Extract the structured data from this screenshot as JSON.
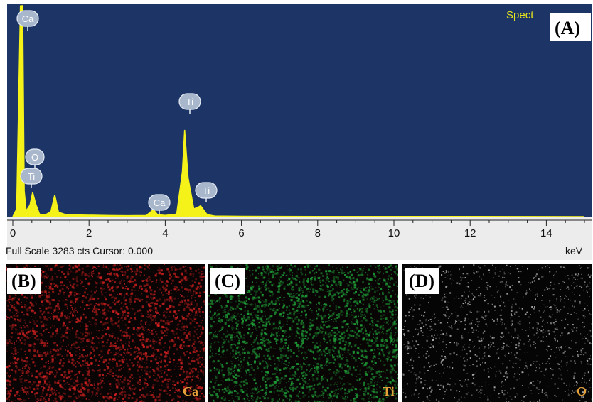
{
  "panels": {
    "a_label": "(A)",
    "b_label": "(B)",
    "c_label": "(C)",
    "d_label": "(D)"
  },
  "spectrum": {
    "header": "Spect",
    "footer_text": "Full Scale 3283 cts Cursor: 0.000",
    "x_unit": "keV",
    "peak_labels": [
      "Ca",
      "O",
      "Ti",
      "Ti",
      "Ca",
      "Ti"
    ]
  },
  "maps": [
    {
      "element": "Ca",
      "color": "#d42020"
    },
    {
      "element": "Ti",
      "color": "#1fa83a"
    },
    {
      "element": "O",
      "color": "#cfcfcf"
    }
  ],
  "colors": {
    "plot_bg": "#1c3566",
    "signal": "#f5f21a",
    "peak_tag": "#a9b7cc",
    "header_text": "#e8e51a",
    "map_label": "#e8a23a"
  },
  "chart_data": {
    "type": "area",
    "title": "",
    "xlabel": "keV",
    "ylabel": "",
    "xlim": [
      0,
      15
    ],
    "ylim": [
      0,
      3283
    ],
    "x_ticks": [
      0,
      2,
      4,
      6,
      8,
      10,
      12,
      14
    ],
    "grid": false,
    "x": [
      0.0,
      0.1,
      0.2,
      0.26,
      0.3,
      0.35,
      0.45,
      0.52,
      0.6,
      0.7,
      0.85,
      1.0,
      1.1,
      1.2,
      1.4,
      1.8,
      2.5,
      3.0,
      3.5,
      3.69,
      3.8,
      4.0,
      4.3,
      4.45,
      4.51,
      4.6,
      4.75,
      4.87,
      4.93,
      5.0,
      5.1,
      5.3,
      6.0,
      8.0,
      10.0,
      12.0,
      14.0,
      15.0
    ],
    "series": [
      {
        "values": [
          0,
          120,
          3280,
          3283,
          400,
          90,
          180,
          380,
          200,
          40,
          25,
          80,
          340,
          70,
          30,
          25,
          18,
          15,
          18,
          110,
          30,
          20,
          40,
          700,
          1350,
          600,
          120,
          150,
          170,
          110,
          30,
          10,
          5,
          3,
          2,
          2,
          1,
          0
        ]
      }
    ],
    "peaks": [
      {
        "label": "Ca",
        "energy_kev": 0.26
      },
      {
        "label": "O",
        "energy_kev": 0.52
      },
      {
        "label": "Ti",
        "energy_kev": 0.45
      },
      {
        "label": "Ti",
        "energy_kev": 4.51
      },
      {
        "label": "Ca",
        "energy_kev": 3.69
      },
      {
        "label": "Ti",
        "energy_kev": 4.93
      }
    ]
  }
}
